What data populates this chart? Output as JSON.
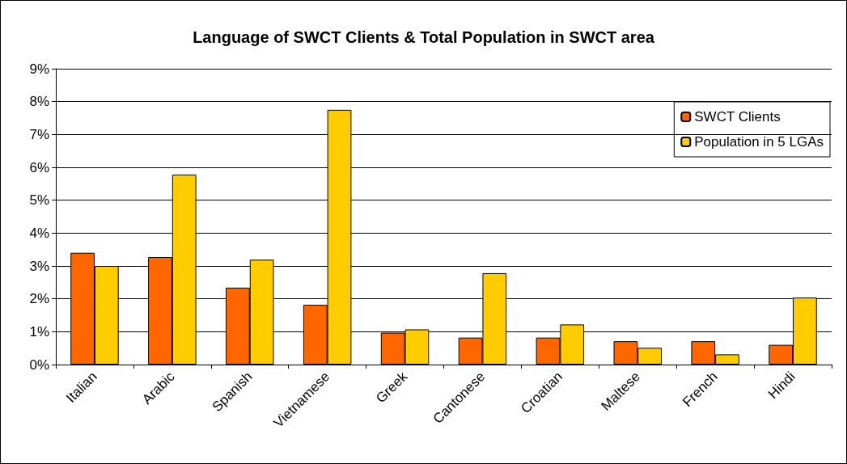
{
  "chart_data": {
    "type": "bar",
    "title": "Language of SWCT Clients & Total Population in SWCT area",
    "categories": [
      "Italian",
      "Arabic",
      "Spanish",
      "Vietnamese",
      "Greek",
      "Cantonese",
      "Croatian",
      "Maltese",
      "French",
      "Hindi"
    ],
    "series": [
      {
        "name": "SWCT Clients",
        "color": "#ff6600",
        "values": [
          3.4,
          3.27,
          2.34,
          1.82,
          0.97,
          0.82,
          0.82,
          0.71,
          0.71,
          0.6
        ]
      },
      {
        "name": "Population in 5 LGAs",
        "color": "#ffcc00",
        "values": [
          3.0,
          5.78,
          3.19,
          7.75,
          1.07,
          2.78,
          1.22,
          0.51,
          0.31,
          2.04
        ]
      }
    ],
    "ylim": [
      0,
      9
    ],
    "yticks": [
      {
        "value": 0,
        "label": "0%"
      },
      {
        "value": 1,
        "label": "1%"
      },
      {
        "value": 2,
        "label": "2%"
      },
      {
        "value": 3,
        "label": "3%"
      },
      {
        "value": 4,
        "label": "4%"
      },
      {
        "value": 5,
        "label": "5%"
      },
      {
        "value": 6,
        "label": "6%"
      },
      {
        "value": 7,
        "label": "7%"
      },
      {
        "value": 8,
        "label": "8%"
      },
      {
        "value": 9,
        "label": "9%"
      }
    ],
    "grid": "y",
    "legend": "top right"
  }
}
